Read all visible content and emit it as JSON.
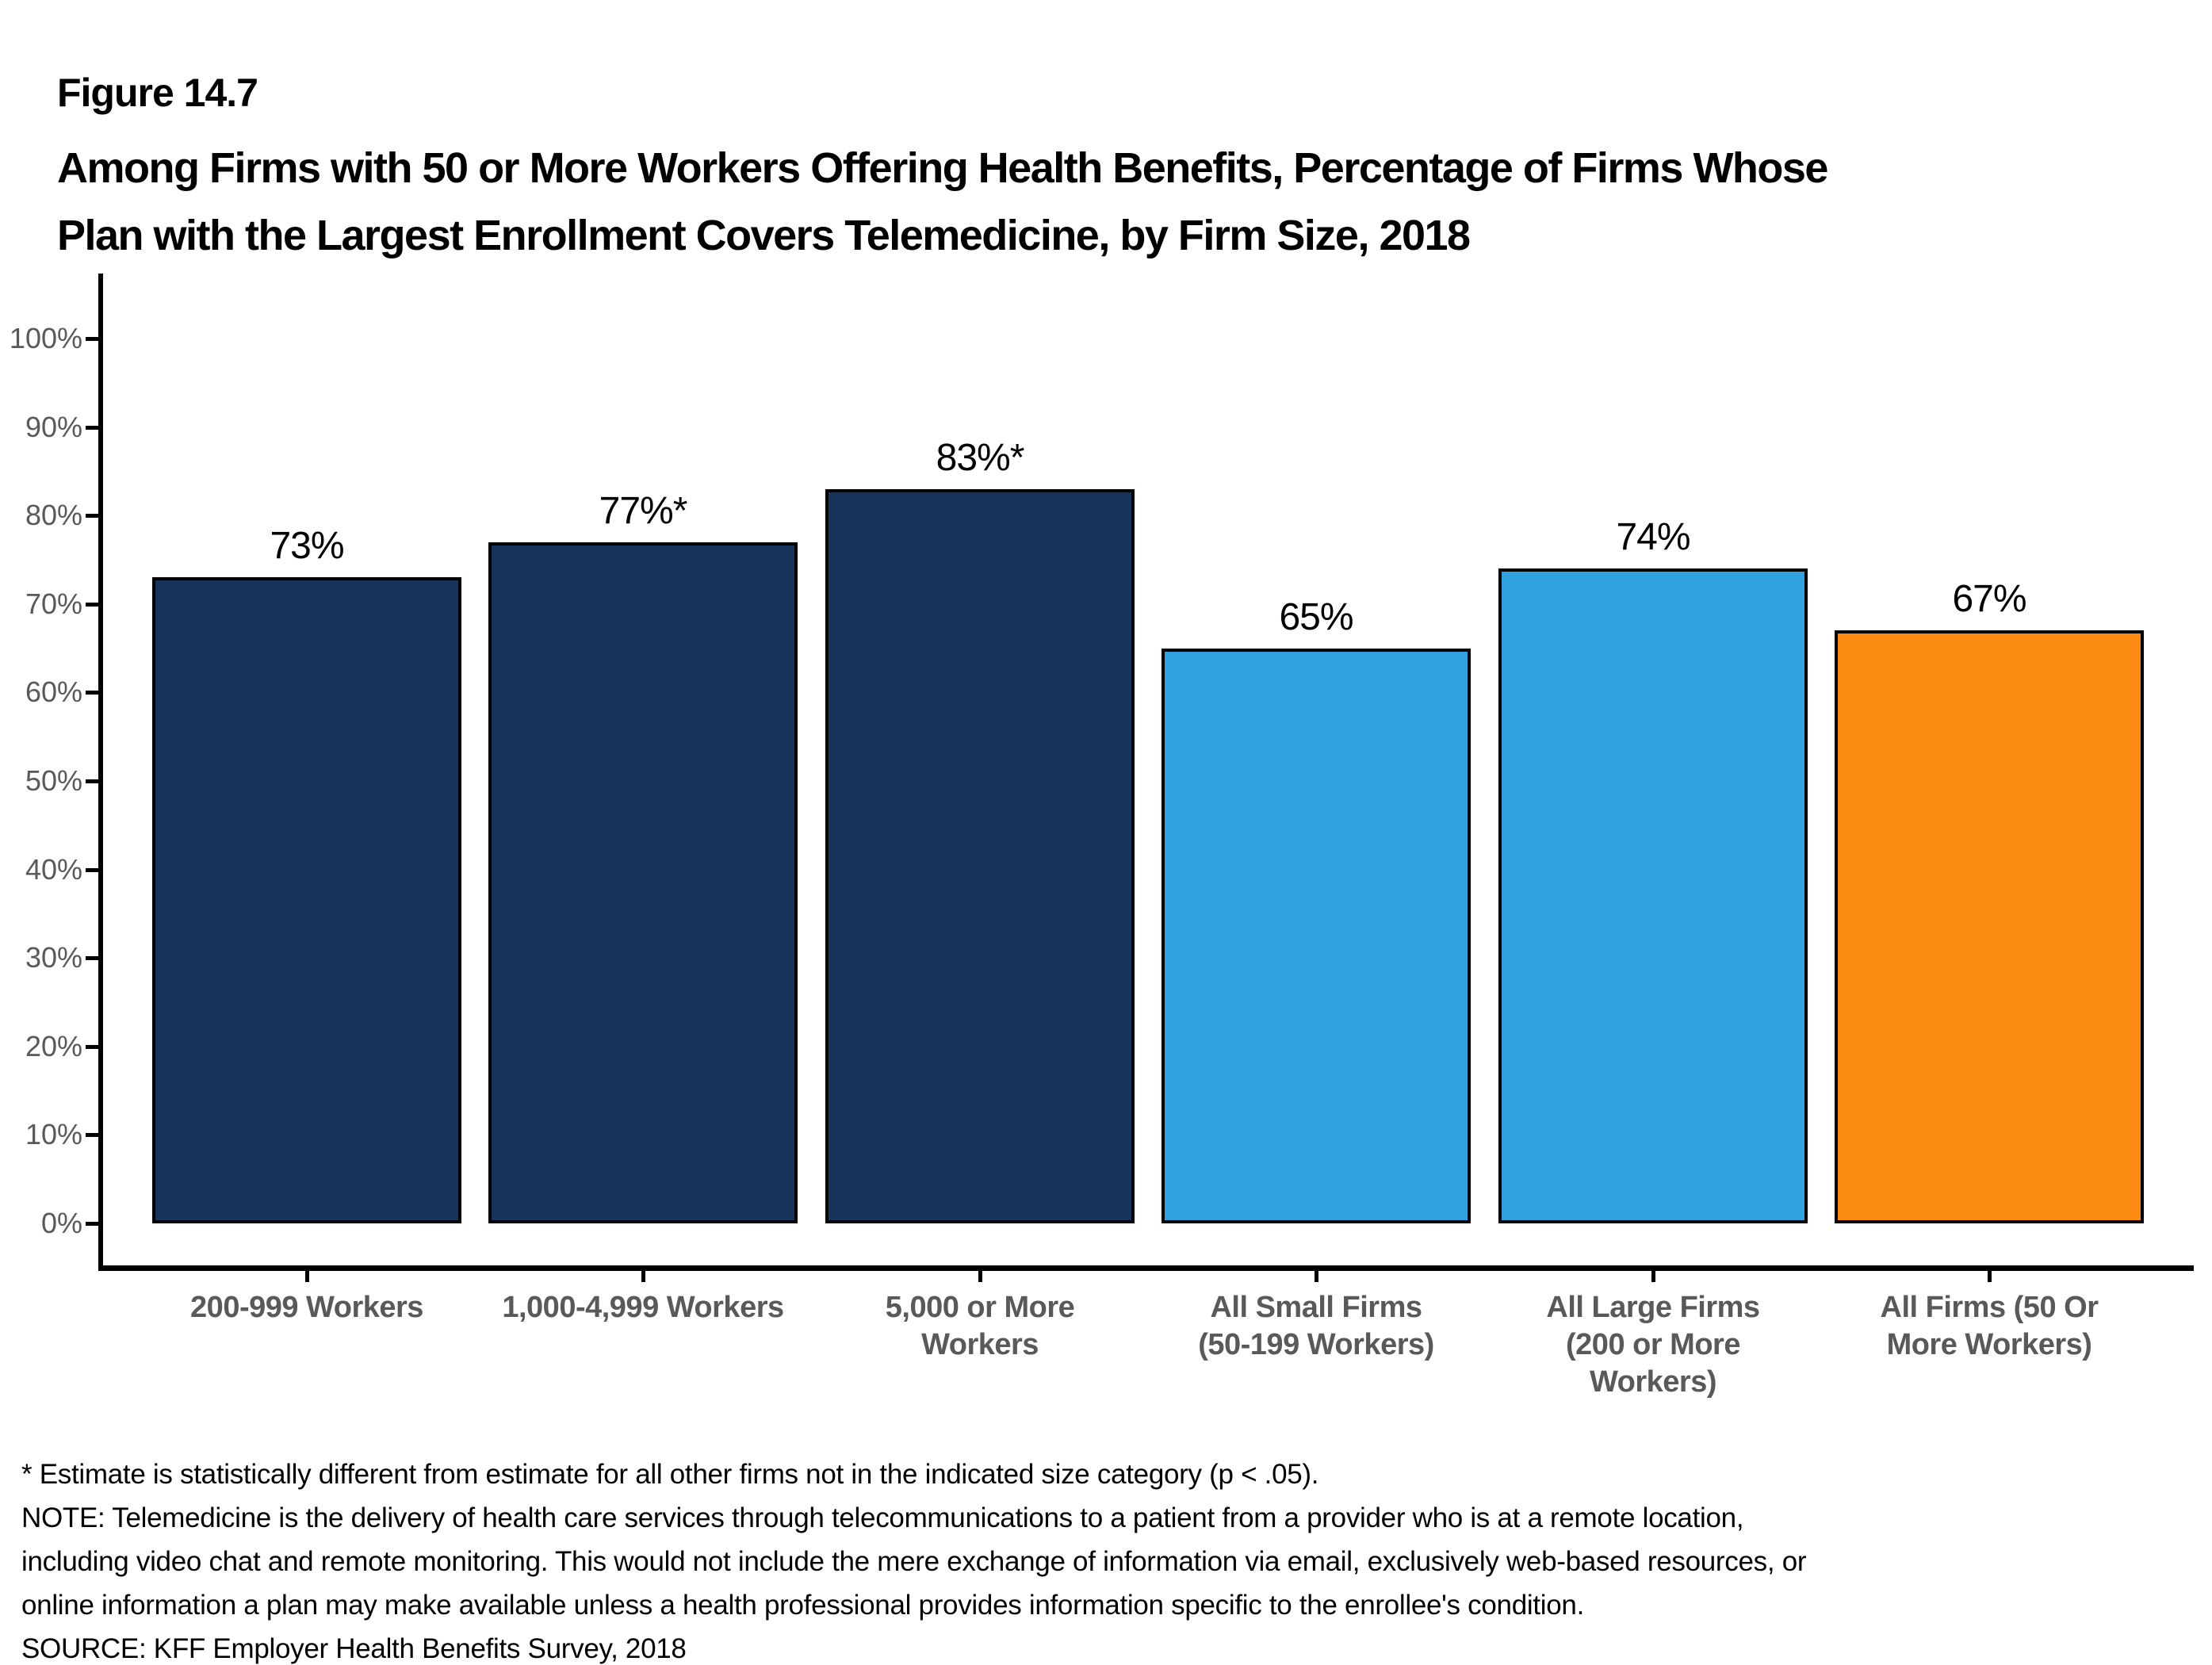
{
  "figure": {
    "label": "Figure 14.7",
    "title_lines": [
      "Among Firms with 50 or More Workers Offering Health Benefits, Percentage of Firms Whose",
      "Plan with the Largest Enrollment Covers Telemedicine, by Firm Size, 2018"
    ]
  },
  "chart_data": {
    "type": "bar",
    "title": "Among Firms with 50 or More Workers Offering Health Benefits, Percentage of Firms Whose Plan with the Largest Enrollment Covers Telemedicine, by Firm Size, 2018",
    "categories": [
      "200-999 Workers",
      "1,000-4,999 Workers",
      "5,000 or More Workers",
      "All Small Firms (50-199 Workers)",
      "All Large Firms (200 or More Workers)",
      "All Firms (50 Or More Workers)"
    ],
    "category_lines": [
      [
        "200-999 Workers"
      ],
      [
        "1,000-4,999 Workers"
      ],
      [
        "5,000 or More",
        "Workers"
      ],
      [
        "All Small Firms",
        "(50-199 Workers)"
      ],
      [
        "All Large Firms",
        "(200 or More",
        "Workers)"
      ],
      [
        "All Firms (50 Or",
        "More Workers)"
      ]
    ],
    "values": [
      73,
      77,
      83,
      65,
      74,
      67
    ],
    "data_labels": [
      "73%",
      "77%*",
      "83%*",
      "65%",
      "74%",
      "67%"
    ],
    "bar_colors": [
      "#17355C",
      "#17355C",
      "#17355C",
      "#2FA2DF",
      "#2FA2DF",
      "#FB8A12"
    ],
    "xlabel": "",
    "ylabel": "",
    "ylim": [
      0,
      100
    ],
    "ytick_step": 10,
    "ytick_labels": [
      "0%",
      "10%",
      "20%",
      "30%",
      "40%",
      "50%",
      "60%",
      "70%",
      "80%",
      "90%",
      "100%"
    ],
    "grid": false,
    "legend": null
  },
  "footnotes": {
    "asterisk_note": "* Estimate is statistically different from estimate for all other firms not in the indicated size category (p < .05).",
    "note_lines": [
      "NOTE: Telemedicine is the delivery of health care services through telecommunications to a patient from a provider who is at a remote location,",
      "including video chat and remote monitoring. This would not include the mere exchange of information via email, exclusively web-based resources, or",
      "online information a plan may make available unless a health professional provides information specific to the enrollee's condition."
    ],
    "source": "SOURCE: KFF Employer Health Benefits Survey, 2018"
  },
  "colors": {
    "navy": "#17355C",
    "light_blue": "#2FA2DF",
    "orange": "#FB8A12",
    "axis_black": "#000000",
    "label_gray": "#595959"
  }
}
